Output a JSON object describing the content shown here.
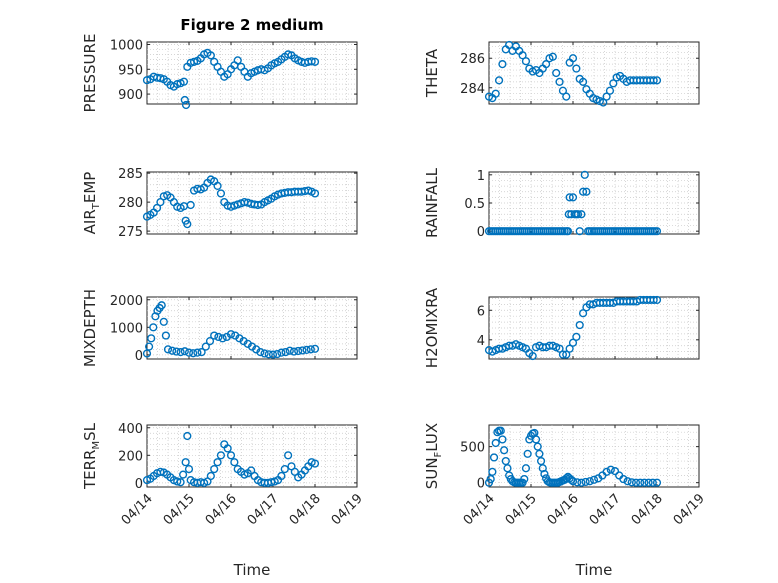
{
  "title": "Figure 2 medium",
  "x_axis": {
    "label": "Time",
    "tick_labels": [
      "04/14",
      "04/15",
      "04/16",
      "04/17",
      "04/18",
      "04/19"
    ]
  },
  "marker_color": "#0072BD",
  "chart_data": [
    {
      "type": "scatter",
      "ylabel": "PRESSURE",
      "ylim": [
        880,
        1005
      ],
      "yticks": [
        900,
        950,
        1000
      ],
      "ytick_labels": [
        "900",
        "950",
        "1000"
      ],
      "xlim": [
        0,
        5
      ],
      "grid": true,
      "x": [
        0.0,
        0.08,
        0.16,
        0.24,
        0.32,
        0.4,
        0.48,
        0.56,
        0.64,
        0.72,
        0.8,
        0.88,
        0.9,
        0.93,
        0.96,
        1.04,
        1.12,
        1.2,
        1.28,
        1.36,
        1.44,
        1.52,
        1.6,
        1.68,
        1.76,
        1.84,
        1.92,
        2.0,
        2.08,
        2.16,
        2.24,
        2.32,
        2.4,
        2.48,
        2.56,
        2.64,
        2.72,
        2.8,
        2.88,
        2.96,
        3.04,
        3.12,
        3.2,
        3.28,
        3.36,
        3.44,
        3.52,
        3.6,
        3.68,
        3.76,
        3.84,
        3.92,
        4.0
      ],
      "y": [
        928,
        930,
        935,
        933,
        932,
        930,
        925,
        918,
        915,
        920,
        922,
        925,
        888,
        878,
        955,
        963,
        965,
        967,
        972,
        980,
        983,
        978,
        965,
        955,
        945,
        935,
        940,
        950,
        958,
        968,
        955,
        945,
        935,
        942,
        945,
        948,
        950,
        948,
        952,
        958,
        962,
        965,
        970,
        975,
        980,
        978,
        972,
        968,
        965,
        963,
        965,
        966,
        965
      ]
    },
    {
      "type": "scatter",
      "ylabel": "THETA",
      "ylim": [
        282.9,
        287.1
      ],
      "yticks": [
        284,
        286
      ],
      "ytick_labels": [
        "284",
        "286"
      ],
      "xlim": [
        0,
        5
      ],
      "grid": true,
      "x": [
        0.0,
        0.08,
        0.16,
        0.24,
        0.32,
        0.4,
        0.48,
        0.56,
        0.64,
        0.72,
        0.8,
        0.88,
        0.96,
        1.04,
        1.12,
        1.2,
        1.28,
        1.36,
        1.44,
        1.52,
        1.6,
        1.68,
        1.76,
        1.84,
        1.92,
        2.0,
        2.08,
        2.16,
        2.24,
        2.32,
        2.4,
        2.48,
        2.56,
        2.64,
        2.72,
        2.8,
        2.88,
        2.96,
        3.04,
        3.12,
        3.2,
        3.28,
        3.36,
        3.44,
        3.52,
        3.6,
        3.68,
        3.76,
        3.84,
        3.92,
        4.0
      ],
      "y": [
        283.4,
        283.3,
        283.6,
        284.5,
        285.6,
        286.6,
        286.9,
        286.5,
        286.8,
        286.5,
        286.2,
        285.8,
        285.3,
        285.1,
        285.2,
        285.0,
        285.3,
        285.6,
        286.0,
        286.1,
        285.0,
        284.4,
        283.8,
        283.4,
        285.7,
        286.0,
        285.3,
        284.6,
        284.4,
        283.9,
        283.6,
        283.3,
        283.2,
        283.1,
        283.0,
        283.4,
        283.8,
        284.3,
        284.7,
        284.8,
        284.6,
        284.4,
        284.5,
        284.5,
        284.5,
        284.5,
        284.5,
        284.5,
        284.5,
        284.5,
        284.5
      ]
    },
    {
      "type": "scatter",
      "ylabel": "AIR_TEMP",
      "ylabel_parts": {
        "main": "AIR",
        "sub": "T",
        "rest": "EMP"
      },
      "ylim": [
        274.5,
        285.2
      ],
      "yticks": [
        275,
        280,
        285
      ],
      "ytick_labels": [
        "275",
        "280",
        "285"
      ],
      "xlim": [
        0,
        5
      ],
      "grid": true,
      "x": [
        0.0,
        0.08,
        0.16,
        0.24,
        0.32,
        0.4,
        0.48,
        0.56,
        0.64,
        0.72,
        0.8,
        0.88,
        0.92,
        0.96,
        1.04,
        1.12,
        1.2,
        1.28,
        1.36,
        1.44,
        1.52,
        1.6,
        1.68,
        1.76,
        1.84,
        1.92,
        2.0,
        2.08,
        2.16,
        2.24,
        2.32,
        2.4,
        2.48,
        2.56,
        2.64,
        2.72,
        2.8,
        2.88,
        2.96,
        3.04,
        3.12,
        3.2,
        3.28,
        3.36,
        3.44,
        3.52,
        3.6,
        3.68,
        3.76,
        3.84,
        3.92,
        4.0
      ],
      "y": [
        277.5,
        277.8,
        278.2,
        279.0,
        280.0,
        281.0,
        281.2,
        280.8,
        280.0,
        279.2,
        279.0,
        279.3,
        276.8,
        276.2,
        279.5,
        282.0,
        282.3,
        282.2,
        282.5,
        283.3,
        283.9,
        283.6,
        282.8,
        281.5,
        280.0,
        279.4,
        279.2,
        279.4,
        279.6,
        279.8,
        280.0,
        279.9,
        279.7,
        279.6,
        279.5,
        279.6,
        280.0,
        280.3,
        280.6,
        281.0,
        281.3,
        281.5,
        281.6,
        281.7,
        281.7,
        281.8,
        281.8,
        281.8,
        281.9,
        282.0,
        281.8,
        281.5
      ]
    },
    {
      "type": "scatter",
      "ylabel": "RAINFALL",
      "ylim": [
        -0.05,
        1.05
      ],
      "yticks": [
        0,
        0.5,
        1
      ],
      "ytick_labels": [
        "0",
        "0.5",
        "1"
      ],
      "xlim": [
        0,
        5
      ],
      "grid": true,
      "x": [
        0.0,
        0.05,
        0.1,
        0.15,
        0.2,
        0.25,
        0.3,
        0.35,
        0.4,
        0.45,
        0.5,
        0.55,
        0.6,
        0.65,
        0.7,
        0.75,
        0.8,
        0.85,
        0.9,
        0.95,
        1.0,
        1.05,
        1.1,
        1.15,
        1.2,
        1.25,
        1.3,
        1.35,
        1.4,
        1.45,
        1.5,
        1.55,
        1.6,
        1.65,
        1.7,
        1.75,
        1.8,
        1.85,
        1.88,
        1.9,
        1.92,
        1.96,
        2.0,
        2.04,
        2.08,
        2.12,
        2.16,
        2.2,
        2.24,
        2.28,
        2.32,
        2.36,
        2.4,
        2.45,
        2.5,
        2.55,
        2.6,
        2.65,
        2.7,
        2.75,
        2.8,
        2.85,
        2.9,
        2.95,
        3.0,
        3.05,
        3.1,
        3.15,
        3.2,
        3.25,
        3.3,
        3.35,
        3.4,
        3.45,
        3.5,
        3.55,
        3.6,
        3.65,
        3.7,
        3.75,
        3.8,
        3.85,
        3.9,
        3.95,
        4.0
      ],
      "y": [
        0,
        0,
        0,
        0,
        0,
        0,
        0,
        0,
        0,
        0,
        0,
        0,
        0,
        0,
        0,
        0,
        0,
        0,
        0,
        0,
        0,
        0,
        0,
        0,
        0,
        0,
        0,
        0,
        0,
        0,
        0,
        0,
        0,
        0,
        0,
        0,
        0,
        0,
        0,
        0.3,
        0.6,
        0.3,
        0.6,
        0.3,
        0.3,
        0.3,
        0,
        0.3,
        0.7,
        1.0,
        0.7,
        0,
        0,
        0,
        0,
        0,
        0,
        0,
        0,
        0,
        0,
        0,
        0,
        0,
        0,
        0,
        0,
        0,
        0,
        0,
        0,
        0,
        0,
        0,
        0,
        0,
        0,
        0,
        0,
        0,
        0,
        0,
        0,
        0,
        0
      ]
    },
    {
      "type": "scatter",
      "ylabel": "MIXDEPTH",
      "ylim": [
        -150,
        2100
      ],
      "yticks": [
        0,
        1000,
        2000
      ],
      "ytick_labels": [
        "0",
        "1000",
        "2000"
      ],
      "xlim": [
        0,
        5
      ],
      "grid": true,
      "x": [
        0.0,
        0.05,
        0.1,
        0.15,
        0.2,
        0.25,
        0.3,
        0.35,
        0.4,
        0.45,
        0.5,
        0.6,
        0.7,
        0.8,
        0.9,
        1.0,
        1.1,
        1.2,
        1.3,
        1.4,
        1.5,
        1.6,
        1.7,
        1.8,
        1.9,
        2.0,
        2.1,
        2.2,
        2.3,
        2.4,
        2.5,
        2.6,
        2.7,
        2.8,
        2.9,
        3.0,
        3.1,
        3.2,
        3.3,
        3.4,
        3.5,
        3.6,
        3.7,
        3.8,
        3.9,
        4.0
      ],
      "y": [
        50,
        300,
        600,
        1000,
        1400,
        1600,
        1700,
        1800,
        1200,
        700,
        200,
        150,
        120,
        100,
        130,
        80,
        60,
        80,
        100,
        300,
        500,
        700,
        650,
        600,
        650,
        750,
        700,
        600,
        500,
        400,
        300,
        200,
        100,
        50,
        20,
        10,
        30,
        80,
        100,
        150,
        120,
        140,
        160,
        180,
        200,
        220
      ]
    },
    {
      "type": "scatter",
      "ylabel": "H2OMIXRA",
      "ylim": [
        2.7,
        6.9
      ],
      "yticks": [
        4,
        6
      ],
      "ytick_labels": [
        "4",
        "6"
      ],
      "xlim": [
        0,
        5
      ],
      "grid": true,
      "x": [
        0.0,
        0.08,
        0.16,
        0.24,
        0.32,
        0.4,
        0.48,
        0.56,
        0.64,
        0.72,
        0.8,
        0.88,
        0.96,
        1.04,
        1.12,
        1.2,
        1.28,
        1.36,
        1.44,
        1.52,
        1.6,
        1.68,
        1.76,
        1.84,
        1.92,
        2.0,
        2.08,
        2.16,
        2.24,
        2.32,
        2.4,
        2.48,
        2.56,
        2.64,
        2.72,
        2.8,
        2.88,
        2.96,
        3.04,
        3.12,
        3.2,
        3.28,
        3.36,
        3.44,
        3.52,
        3.6,
        3.68,
        3.76,
        3.84,
        3.92,
        4.0
      ],
      "y": [
        3.3,
        3.2,
        3.3,
        3.4,
        3.4,
        3.5,
        3.6,
        3.6,
        3.7,
        3.6,
        3.5,
        3.4,
        3.1,
        2.9,
        3.5,
        3.6,
        3.5,
        3.5,
        3.6,
        3.6,
        3.5,
        3.4,
        3.0,
        3.0,
        3.4,
        3.8,
        4.2,
        5.0,
        5.8,
        6.2,
        6.4,
        6.4,
        6.5,
        6.5,
        6.5,
        6.5,
        6.5,
        6.5,
        6.6,
        6.6,
        6.6,
        6.6,
        6.6,
        6.6,
        6.6,
        6.7,
        6.7,
        6.7,
        6.7,
        6.7,
        6.7
      ]
    },
    {
      "type": "scatter",
      "ylabel": "TERR_MSL",
      "ylabel_parts": {
        "main": "TERR",
        "sub": "M",
        "rest": "SL"
      },
      "ylim": [
        -30,
        420
      ],
      "yticks": [
        0,
        200,
        400
      ],
      "ytick_labels": [
        "0",
        "200",
        "400"
      ],
      "xlim": [
        0,
        5
      ],
      "grid": true,
      "x": [
        0.0,
        0.08,
        0.16,
        0.24,
        0.32,
        0.4,
        0.48,
        0.56,
        0.64,
        0.72,
        0.8,
        0.86,
        0.92,
        0.96,
        1.0,
        1.04,
        1.12,
        1.2,
        1.28,
        1.36,
        1.44,
        1.52,
        1.6,
        1.68,
        1.76,
        1.84,
        1.92,
        2.0,
        2.08,
        2.16,
        2.24,
        2.32,
        2.4,
        2.48,
        2.56,
        2.64,
        2.72,
        2.8,
        2.88,
        2.96,
        3.04,
        3.12,
        3.2,
        3.28,
        3.36,
        3.44,
        3.52,
        3.6,
        3.68,
        3.76,
        3.84,
        3.92,
        4.0
      ],
      "y": [
        20,
        30,
        50,
        70,
        80,
        75,
        60,
        40,
        20,
        10,
        5,
        60,
        150,
        340,
        100,
        20,
        5,
        0,
        5,
        0,
        10,
        50,
        100,
        150,
        200,
        280,
        250,
        200,
        150,
        100,
        80,
        60,
        70,
        90,
        50,
        20,
        5,
        0,
        0,
        5,
        10,
        20,
        50,
        100,
        200,
        120,
        80,
        40,
        60,
        90,
        120,
        150,
        140
      ]
    },
    {
      "type": "scatter",
      "ylabel": "SUN_FLUX",
      "ylabel_parts": {
        "main": "SUN",
        "sub": "F",
        "rest": "LUX"
      },
      "ylim": [
        -60,
        800
      ],
      "yticks": [
        0,
        500
      ],
      "ytick_labels": [
        "0",
        "500"
      ],
      "xlim": [
        0,
        5
      ],
      "grid": true,
      "x": [
        0.0,
        0.04,
        0.08,
        0.12,
        0.16,
        0.2,
        0.24,
        0.28,
        0.32,
        0.36,
        0.4,
        0.44,
        0.48,
        0.52,
        0.56,
        0.6,
        0.64,
        0.68,
        0.72,
        0.76,
        0.8,
        0.84,
        0.88,
        0.92,
        0.96,
        1.0,
        1.04,
        1.08,
        1.12,
        1.16,
        1.2,
        1.24,
        1.28,
        1.32,
        1.36,
        1.4,
        1.44,
        1.48,
        1.52,
        1.56,
        1.6,
        1.64,
        1.68,
        1.72,
        1.76,
        1.8,
        1.84,
        1.88,
        1.92,
        1.96,
        2.0,
        2.1,
        2.2,
        2.3,
        2.4,
        2.5,
        2.6,
        2.7,
        2.8,
        2.9,
        3.0,
        3.1,
        3.2,
        3.3,
        3.4,
        3.5,
        3.6,
        3.7,
        3.8,
        3.9,
        4.0
      ],
      "y": [
        0,
        50,
        150,
        350,
        550,
        700,
        720,
        720,
        600,
        450,
        300,
        200,
        100,
        50,
        20,
        5,
        0,
        0,
        0,
        0,
        0,
        50,
        200,
        400,
        600,
        650,
        680,
        690,
        600,
        500,
        400,
        300,
        200,
        120,
        60,
        20,
        5,
        0,
        0,
        0,
        0,
        0,
        10,
        20,
        30,
        40,
        60,
        80,
        60,
        40,
        20,
        5,
        0,
        10,
        20,
        40,
        60,
        100,
        150,
        180,
        160,
        100,
        50,
        20,
        5,
        0,
        0,
        0,
        0,
        0,
        0
      ]
    }
  ]
}
